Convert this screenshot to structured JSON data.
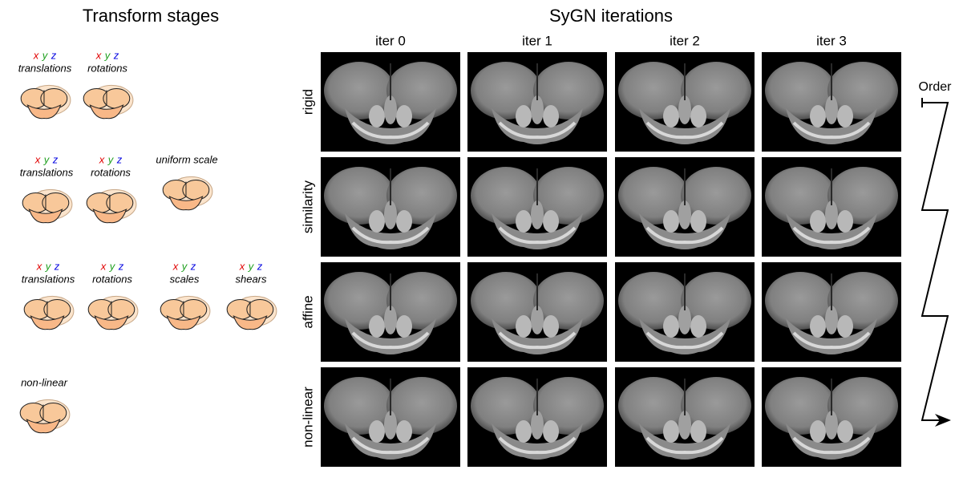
{
  "left": {
    "title": "Transform stages",
    "stages": [
      {
        "items": [
          {
            "axes": [
              "x",
              "y",
              "z"
            ],
            "label": "translations"
          },
          {
            "axes": [
              "x",
              "y",
              "z"
            ],
            "label": "rotations"
          }
        ]
      },
      {
        "items": [
          {
            "axes": [
              "x",
              "y",
              "z"
            ],
            "label": "translations"
          },
          {
            "axes": [
              "x",
              "y",
              "z"
            ],
            "label": "rotations"
          },
          {
            "label": "uniform scale"
          }
        ]
      },
      {
        "items": [
          {
            "axes": [
              "x",
              "y",
              "z"
            ],
            "label": "translations"
          },
          {
            "axes": [
              "x",
              "y",
              "z"
            ],
            "label": "rotations"
          },
          {
            "axes": [
              "x",
              "y",
              "z"
            ],
            "label": "scales"
          },
          {
            "axes": [
              "x",
              "y",
              "z"
            ],
            "label": "shears"
          }
        ]
      },
      {
        "items": [
          {
            "label": "non-linear"
          }
        ]
      }
    ]
  },
  "right": {
    "title": "SyGN iterations",
    "columns": [
      "iter 0",
      "iter 1",
      "iter 2",
      "iter 3"
    ],
    "rows": [
      "rigid",
      "similarity",
      "affine",
      "non-linear"
    ],
    "order_label": "Order"
  }
}
